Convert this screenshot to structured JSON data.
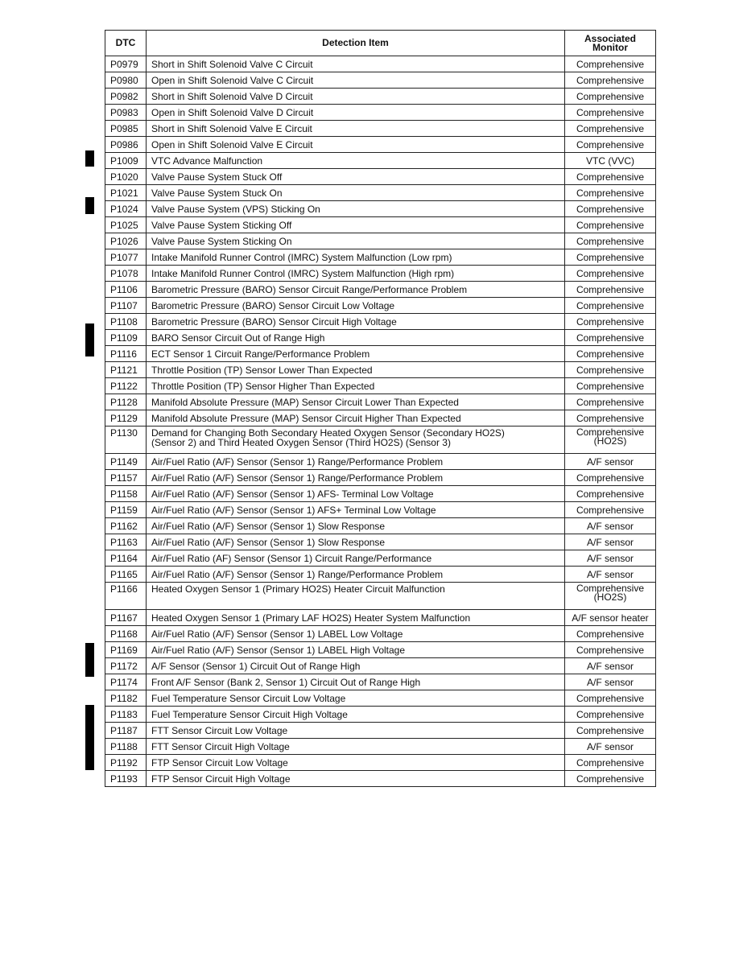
{
  "table": {
    "headers": {
      "dtc": "DTC",
      "item": "Detection Item",
      "monitor_line1": "Associated",
      "monitor_line2": "Monitor"
    },
    "rows": [
      {
        "dtc": "P0979",
        "item": "Short in Shift Solenoid Valve C Circuit",
        "monitor": "Comprehensive"
      },
      {
        "dtc": "P0980",
        "item": "Open in Shift Solenoid Valve C Circuit",
        "monitor": "Comprehensive"
      },
      {
        "dtc": "P0982",
        "item": "Short in Shift Solenoid Valve D Circuit",
        "monitor": "Comprehensive"
      },
      {
        "dtc": "P0983",
        "item": "Open in Shift Solenoid Valve D Circuit",
        "monitor": "Comprehensive"
      },
      {
        "dtc": "P0985",
        "item": "Short in Shift Solenoid Valve E Circuit",
        "monitor": "Comprehensive"
      },
      {
        "dtc": "P0986",
        "item": "Open in Shift Solenoid Valve E Circuit",
        "monitor": "Comprehensive"
      },
      {
        "dtc": "P1009",
        "item": "VTC Advance Malfunction",
        "monitor": "VTC (VVC)"
      },
      {
        "dtc": "P1020",
        "item": "Valve Pause System Stuck Off",
        "monitor": "Comprehensive"
      },
      {
        "dtc": "P1021",
        "item": "Valve Pause System Stuck On",
        "monitor": "Comprehensive"
      },
      {
        "dtc": "P1024",
        "item": "Valve Pause System (VPS) Sticking On",
        "monitor": "Comprehensive"
      },
      {
        "dtc": "P1025",
        "item": "Valve Pause System Sticking Off",
        "monitor": "Comprehensive"
      },
      {
        "dtc": "P1026",
        "item": "Valve Pause System Sticking On",
        "monitor": "Comprehensive"
      },
      {
        "dtc": "P1077",
        "item": "Intake Manifold Runner Control (IMRC) System Malfunction (Low rpm)",
        "monitor": "Comprehensive"
      },
      {
        "dtc": "P1078",
        "item": "Intake Manifold Runner Control (IMRC) System Malfunction (High rpm)",
        "monitor": "Comprehensive"
      },
      {
        "dtc": "P1106",
        "item": "Barometric Pressure (BARO) Sensor Circuit Range/Performance Problem",
        "monitor": "Comprehensive"
      },
      {
        "dtc": "P1107",
        "item": "Barometric Pressure (BARO) Sensor Circuit Low Voltage",
        "monitor": "Comprehensive"
      },
      {
        "dtc": "P1108",
        "item": "Barometric Pressure (BARO) Sensor Circuit High Voltage",
        "monitor": "Comprehensive"
      },
      {
        "dtc": "P1109",
        "item": "BARO Sensor Circuit Out of Range High",
        "monitor": "Comprehensive"
      },
      {
        "dtc": "P1116",
        "item": "ECT Sensor 1 Circuit Range/Performance Problem",
        "monitor": "Comprehensive"
      },
      {
        "dtc": "P1121",
        "item": "Throttle Position (TP) Sensor Lower Than Expected",
        "monitor": "Comprehensive"
      },
      {
        "dtc": "P1122",
        "item": "Throttle Position (TP) Sensor Higher Than Expected",
        "monitor": "Comprehensive"
      },
      {
        "dtc": "P1128",
        "item": "Manifold Absolute Pressure (MAP) Sensor Circuit Lower Than Expected",
        "monitor": "Comprehensive"
      },
      {
        "dtc": "P1129",
        "item": "Manifold Absolute Pressure (MAP) Sensor Circuit Higher Than Expected",
        "monitor": "Comprehensive"
      },
      {
        "dtc": "P1130",
        "item": "Demand for Changing Both Secondary Heated Oxygen Sensor (Secondary HO2S)",
        "item2": "(Sensor 2) and Third Heated Oxygen Sensor (Third HO2S) (Sensor 3)",
        "monitor": "Comprehensive",
        "monitor2": "(HO2S)"
      },
      {
        "dtc": "P1149",
        "item": "Air/Fuel Ratio (A/F) Sensor (Sensor 1) Range/Performance Problem",
        "monitor": "A/F sensor"
      },
      {
        "dtc": "P1157",
        "item": "Air/Fuel Ratio (A/F) Sensor (Sensor 1) Range/Performance Problem",
        "monitor": "Comprehensive"
      },
      {
        "dtc": "P1158",
        "item": "Air/Fuel Ratio (A/F) Sensor (Sensor 1) AFS- Terminal Low Voltage",
        "monitor": "Comprehensive"
      },
      {
        "dtc": "P1159",
        "item": "Air/Fuel Ratio (A/F) Sensor (Sensor 1) AFS+ Terminal Low Voltage",
        "monitor": "Comprehensive"
      },
      {
        "dtc": "P1162",
        "item": "Air/Fuel Ratio (A/F) Sensor (Sensor 1) Slow Response",
        "monitor": "A/F sensor"
      },
      {
        "dtc": "P1163",
        "item": "Air/Fuel Ratio (A/F) Sensor (Sensor 1) Slow Response",
        "monitor": "A/F sensor"
      },
      {
        "dtc": "P1164",
        "item": "Air/Fuel Ratio (AF) Sensor (Sensor 1) Circuit Range/Performance",
        "monitor": "A/F sensor"
      },
      {
        "dtc": "P1165",
        "item": "Air/Fuel Ratio (A/F) Sensor (Sensor 1) Range/Performance Problem",
        "monitor": "A/F sensor"
      },
      {
        "dtc": "P1166",
        "item": "Heated Oxygen Sensor 1 (Primary HO2S) Heater Circuit Malfunction",
        "monitor": "Comprehensive",
        "monitor2": "(HO2S)"
      },
      {
        "dtc": "P1167",
        "item": "Heated Oxygen Sensor 1 (Primary LAF HO2S) Heater System Malfunction",
        "monitor": "A/F sensor heater"
      },
      {
        "dtc": "P1168",
        "item": "Air/Fuel Ratio (A/F) Sensor (Sensor 1) LABEL Low Voltage",
        "monitor": "Comprehensive"
      },
      {
        "dtc": "P1169",
        "item": "Air/Fuel Ratio (A/F) Sensor (Sensor 1) LABEL High Voltage",
        "monitor": "Comprehensive"
      },
      {
        "dtc": "P1172",
        "item": "A/F Sensor (Sensor 1) Circuit Out of Range High",
        "monitor": "A/F sensor"
      },
      {
        "dtc": "P1174",
        "item": "Front A/F Sensor (Bank 2, Sensor 1) Circuit Out of Range High",
        "monitor": "A/F sensor"
      },
      {
        "dtc": "P1182",
        "item": "Fuel Temperature Sensor Circuit Low Voltage",
        "monitor": "Comprehensive"
      },
      {
        "dtc": "P1183",
        "item": "Fuel Temperature Sensor Circuit High Voltage",
        "monitor": "Comprehensive"
      },
      {
        "dtc": "P1187",
        "item": "FTT Sensor Circuit Low Voltage",
        "monitor": "Comprehensive"
      },
      {
        "dtc": "P1188",
        "item": "FTT Sensor Circuit High Voltage",
        "monitor": "A/F sensor"
      },
      {
        "dtc": "P1192",
        "item": "FTP Sensor Circuit Low Voltage",
        "monitor": "Comprehensive"
      },
      {
        "dtc": "P1193",
        "item": "FTP Sensor Circuit High Voltage",
        "monitor": "Comprehensive"
      }
    ]
  }
}
